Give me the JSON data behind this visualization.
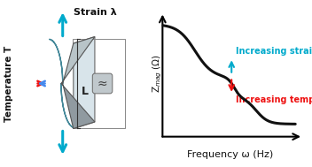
{
  "bg_color": "#ffffff",
  "teal_color": "#00AACC",
  "red_color": "#EE1111",
  "blue_color": "#4488EE",
  "body_fill": "#C8DDE8",
  "body_fill2": "#B0CDD8",
  "cap_fill": "#B8C4C8",
  "cap_fill2": "#909AA0",
  "back_fill": "#D8E4EA",
  "squiggle_fill": "#C0C8CC",
  "curve_color": "#111111",
  "title_strain": "Strain λ",
  "title_temp": "Temperature T",
  "label_L": "L",
  "xlabel": "Frequency ω (Hz)",
  "ylabel": "Z$_{mag}$ (Ω)",
  "label_strain": "Increasing strain",
  "label_temp": "Increasing temperature"
}
